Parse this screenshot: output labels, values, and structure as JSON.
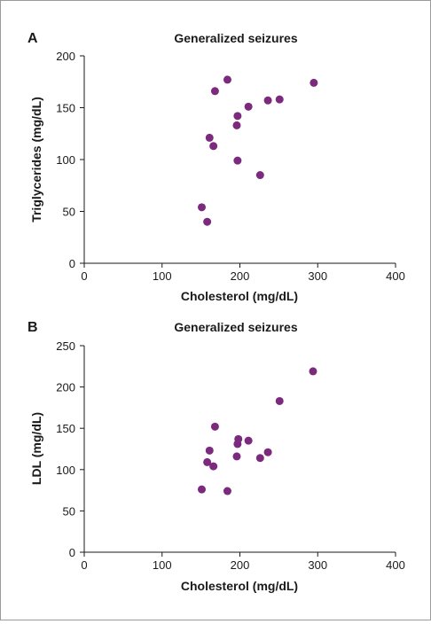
{
  "chart_data": [
    {
      "type": "scatter",
      "panel": "A",
      "title": "Generalized seizures",
      "xlabel": "Cholesterol (mg/dL)",
      "ylabel": "Triglycerides (mg/dL)",
      "xlim": [
        0,
        400
      ],
      "ylim": [
        0,
        200
      ],
      "xticks": [
        0,
        100,
        200,
        300,
        400
      ],
      "yticks": [
        0,
        50,
        100,
        150,
        200
      ],
      "grid": false,
      "marker_color": "#7b2a7e",
      "series": [
        {
          "points": [
            [
              151,
              54
            ],
            [
              158,
              40
            ],
            [
              161,
              121
            ],
            [
              166,
              113
            ],
            [
              168,
              166
            ],
            [
              184,
              177
            ],
            [
              196,
              133
            ],
            [
              197,
              99
            ],
            [
              197,
              142
            ],
            [
              211,
              151
            ],
            [
              226,
              85
            ],
            [
              236,
              157
            ],
            [
              251,
              158
            ],
            [
              295,
              174
            ]
          ]
        }
      ]
    },
    {
      "type": "scatter",
      "panel": "B",
      "title": "Generalized seizures",
      "xlabel": "Cholesterol (mg/dL)",
      "ylabel": "LDL (mg/dL)",
      "xlim": [
        0,
        400
      ],
      "ylim": [
        0,
        250
      ],
      "xticks": [
        0,
        100,
        200,
        300,
        400
      ],
      "yticks": [
        0,
        50,
        100,
        150,
        200,
        250
      ],
      "grid": false,
      "marker_color": "#7b2a7e",
      "series": [
        {
          "points": [
            [
              151,
              76
            ],
            [
              158,
              109
            ],
            [
              161,
              123
            ],
            [
              166,
              104
            ],
            [
              168,
              152
            ],
            [
              184,
              74
            ],
            [
              196,
              116
            ],
            [
              197,
              131
            ],
            [
              198,
              137
            ],
            [
              211,
              135
            ],
            [
              226,
              114
            ],
            [
              236,
              121
            ],
            [
              251,
              183
            ],
            [
              294,
              219
            ]
          ]
        }
      ]
    }
  ]
}
